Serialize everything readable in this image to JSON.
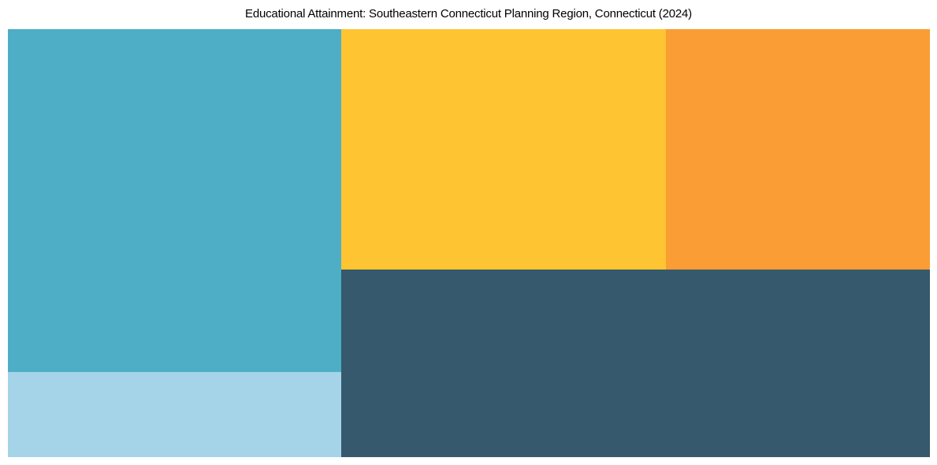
{
  "page": {
    "background_color": "#ffffff"
  },
  "header": {
    "title": "Educational Attainment: Southeastern Connecticut Planning Region, Connecticut (2024)"
  },
  "chart_data": {
    "type": "treemap",
    "title": "Educational Attainment: Southeastern Connecticut Planning Region, Connecticut (2024)",
    "legend": "none",
    "tile_labels_visible": false,
    "layout": "squarified treemap, full-bleed tiles, no gaps, white page margin of ~10px on sides and bottom",
    "segments": [
      {
        "id": "teal",
        "color": "#4DAEC6",
        "area_share_pct_est": 28.9,
        "position": "top-left"
      },
      {
        "id": "light-blue",
        "color": "#A5D3E8",
        "area_share_pct_est": 7.2,
        "position": "bottom-left"
      },
      {
        "id": "yellow",
        "color": "#FEC431",
        "area_share_pct_est": 19.8,
        "position": "top-middle"
      },
      {
        "id": "orange",
        "color": "#FA9D35",
        "area_share_pct_est": 16.1,
        "position": "top-right"
      },
      {
        "id": "dark-slate",
        "color": "#36596D",
        "area_share_pct_est": 28.0,
        "position": "bottom-right-spanning"
      }
    ]
  }
}
